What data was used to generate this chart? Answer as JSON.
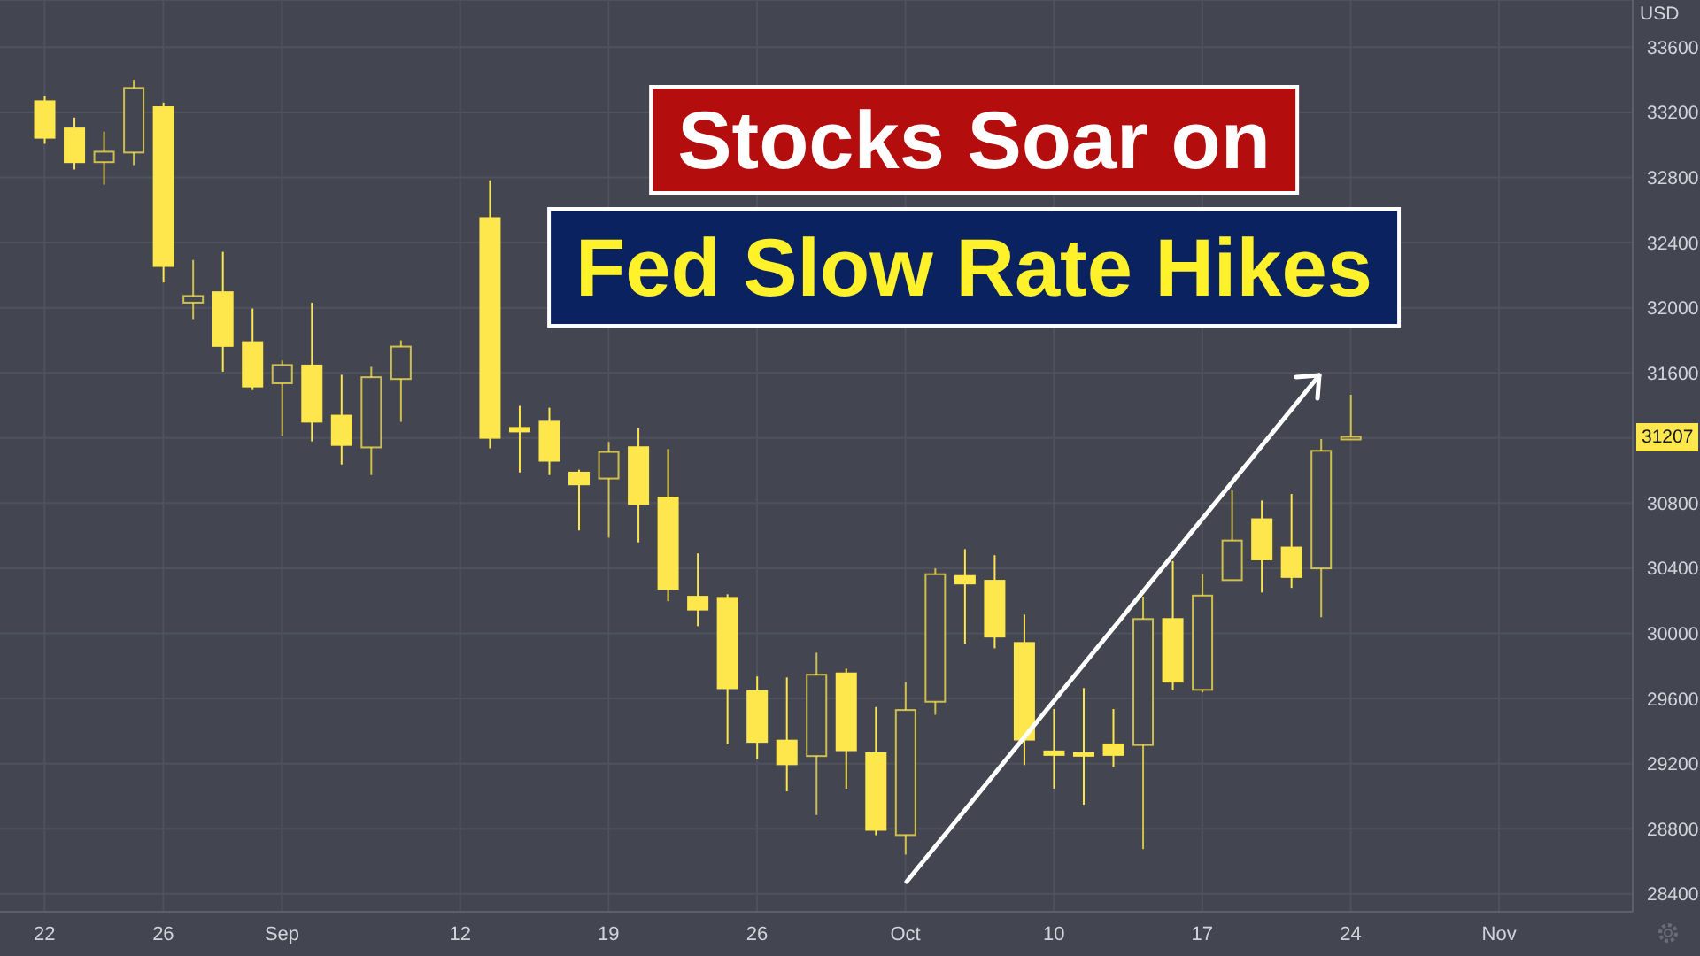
{
  "chart_data": {
    "type": "candlestick",
    "title": "Stocks Soar on",
    "subtitle": "Fed Slow Rate Hikes",
    "ylabel": "USD",
    "categories": [
      null,
      "22",
      null,
      null,
      null,
      "26",
      null,
      null,
      null,
      "Sep",
      null,
      null,
      null,
      null,
      null,
      "12",
      null,
      null,
      null,
      null,
      "19",
      null,
      null,
      null,
      null,
      "26",
      null,
      null,
      null,
      null,
      "Oct",
      null,
      null,
      null,
      null,
      "10",
      null,
      null,
      null,
      null,
      "17",
      null,
      null,
      null,
      null,
      "24",
      null,
      null,
      null,
      null,
      "Nov",
      null,
      null,
      null,
      null
    ],
    "ohlc": [
      null,
      [
        33268,
        33300,
        33007,
        33044
      ],
      [
        33101,
        33168,
        32849,
        32894
      ],
      [
        32894,
        33082,
        32756,
        32958
      ],
      [
        32953,
        33400,
        32876,
        33350
      ],
      [
        33232,
        33260,
        32155,
        32256
      ],
      [
        32031,
        32293,
        31930,
        32072
      ],
      [
        32095,
        32343,
        31607,
        31765
      ],
      [
        31788,
        31995,
        31494,
        31516
      ],
      [
        31536,
        31675,
        31213,
        31648
      ],
      [
        31645,
        32031,
        31179,
        31300
      ],
      [
        31337,
        31588,
        31037,
        31157
      ],
      [
        31142,
        31637,
        30972,
        31573
      ],
      [
        31562,
        31799,
        31299,
        31761
      ],
      null,
      null,
      [
        32550,
        32782,
        31136,
        31201
      ],
      [
        31262,
        31397,
        30988,
        31240
      ],
      [
        31300,
        31386,
        30972,
        31060
      ],
      [
        30987,
        31005,
        30632,
        30915
      ],
      [
        30951,
        31176,
        30588,
        31114
      ],
      [
        31143,
        31259,
        30559,
        30795
      ],
      [
        30834,
        31132,
        30197,
        30273
      ],
      [
        30225,
        30491,
        30044,
        30146
      ],
      [
        30218,
        30240,
        29318,
        29663
      ],
      [
        29645,
        29735,
        29228,
        29333
      ],
      [
        29341,
        29729,
        29029,
        29196
      ],
      [
        29246,
        29881,
        28884,
        29746
      ],
      [
        29754,
        29783,
        29046,
        29282
      ],
      [
        29264,
        29547,
        28760,
        28793
      ],
      [
        28761,
        29700,
        28641,
        29529
      ],
      [
        29580,
        30399,
        29500,
        30363
      ],
      [
        30352,
        30517,
        29936,
        30306
      ],
      [
        30323,
        30480,
        29908,
        29980
      ],
      [
        29941,
        30115,
        29191,
        29347
      ],
      [
        29275,
        29535,
        29046,
        29253
      ],
      [
        29264,
        29664,
        28948,
        29253
      ],
      [
        29318,
        29535,
        29180,
        29253
      ],
      [
        29314,
        30225,
        28674,
        30088
      ],
      [
        30088,
        30444,
        29650,
        29703
      ],
      [
        29653,
        30363,
        29637,
        30232
      ],
      [
        30327,
        30878,
        30327,
        30570
      ],
      [
        30701,
        30816,
        30251,
        30454
      ],
      [
        30527,
        30856,
        30279,
        30346
      ],
      [
        30399,
        31193,
        30099,
        31121
      ],
      [
        31200,
        31465,
        31200,
        31207
      ],
      null,
      null,
      null,
      null,
      null,
      null,
      null,
      null,
      null
    ],
    "color": "#fde74c",
    "ylim": [
      28290,
      33890
    ],
    "yticks": [
      28400,
      28800,
      29200,
      29600,
      30000,
      30400,
      30800,
      {
        "value": 31200,
        "label": null
      },
      31600,
      32000,
      32400,
      32800,
      33200,
      33600
    ],
    "grid": true,
    "annotations": [
      {
        "text": "31207",
        "y": 31207
      }
    ]
  }
}
